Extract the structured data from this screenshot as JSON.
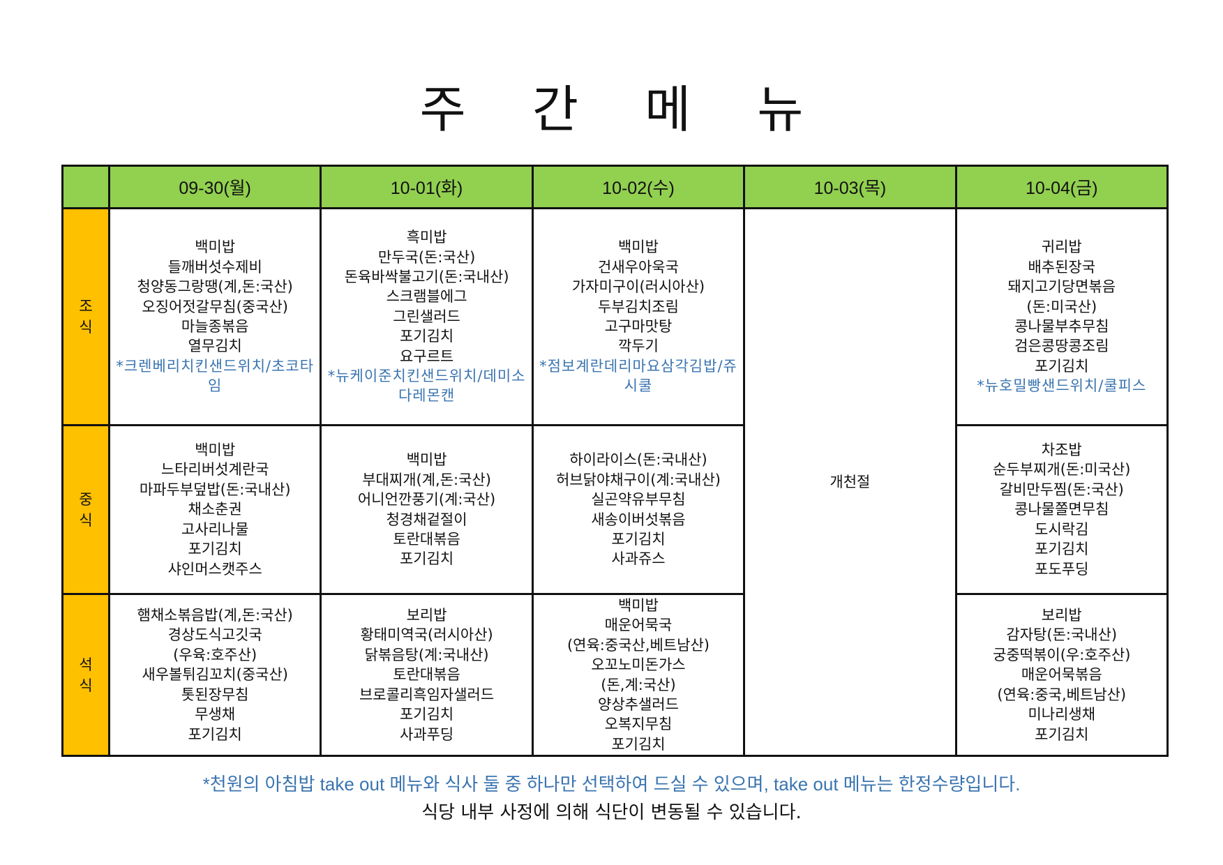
{
  "title": "주간메뉴",
  "colors": {
    "header_bg": "#92d050",
    "meal_label_bg": "#ffc000",
    "takeout_text": "#3a74b0"
  },
  "days": [
    "09-30(월)",
    "10-01(화)",
    "10-02(수)",
    "10-03(목)",
    "10-04(금)"
  ],
  "holiday": {
    "day": "10-03(목)",
    "label": "개천절"
  },
  "meals": [
    {
      "label": "조\n식",
      "cells": [
        {
          "items": [
            "백미밥",
            "들깨버섯수제비",
            "청양동그랑땡(계,돈:국산)",
            "오징어젓갈무침(중국산)",
            "마늘종볶음",
            "열무김치"
          ],
          "takeout": "*크렌베리치킨샌드위치/초코타임"
        },
        {
          "items": [
            "흑미밥",
            "만두국(돈:국산)",
            "돈육바싹불고기(돈:국내산)",
            "스크램블에그",
            "그린샐러드",
            "포기김치",
            "요구르트"
          ],
          "takeout": "*뉴케이준치킨샌드위치/데미소다레몬캔"
        },
        {
          "items": [
            "백미밥",
            "건새우아욱국",
            "가자미구이(러시아산)",
            "두부김치조림",
            "고구마맛탕",
            "깍두기"
          ],
          "takeout": "*점보계란데리마요삼각김밥/쥬시쿨"
        },
        null,
        {
          "items": [
            "귀리밥",
            "배추된장국",
            "돼지고기당면볶음",
            "(돈:미국산)",
            "콩나물부추무침",
            "검은콩땅콩조림",
            "포기김치"
          ],
          "takeout": "*뉴호밀빵샌드위치/쿨피스"
        }
      ]
    },
    {
      "label": "중\n식",
      "cells": [
        {
          "items": [
            "백미밥",
            "느타리버섯계란국",
            "마파두부덮밥(돈:국내산)",
            "채소춘권",
            "고사리나물",
            "포기김치",
            "샤인머스캣주스"
          ]
        },
        {
          "items": [
            "백미밥",
            "부대찌개(계,돈:국산)",
            "어니언깐풍기(계:국산)",
            "청경채겉절이",
            "토란대볶음",
            "포기김치"
          ]
        },
        {
          "items": [
            "하이라이스(돈:국내산)",
            "허브닭야채구이(계:국내산)",
            "실곤약유부무침",
            "새송이버섯볶음",
            "포기김치",
            "사과쥬스"
          ]
        },
        null,
        {
          "items": [
            "차조밥",
            "순두부찌개(돈:미국산)",
            "갈비만두찜(돈:국산)",
            "콩나물쫄면무침",
            "도시락김",
            "포기김치",
            "포도푸딩"
          ]
        }
      ]
    },
    {
      "label": "석\n식",
      "cells": [
        {
          "items": [
            "햄채소볶음밥(계,돈:국산)",
            "경상도식고깃국",
            "(우육:호주산)",
            "새우볼튀김꼬치(중국산)",
            "톳된장무침",
            "무생채",
            "포기김치"
          ]
        },
        {
          "items": [
            "보리밥",
            "황태미역국(러시아산)",
            "닭볶음탕(계:국내산)",
            "토란대볶음",
            "브로콜리흑임자샐러드",
            "포기김치",
            "사과푸딩"
          ]
        },
        {
          "items": [
            "백미밥",
            "매운어묵국",
            "(연육:중국산,베트남산)",
            "오꼬노미돈가스",
            "(돈,계:국산)",
            "양상추샐러드",
            "오복지무침",
            "포기김치"
          ]
        },
        null,
        {
          "items": [
            "보리밥",
            "감자탕(돈:국내산)",
            "궁중떡볶이(우:호주산)",
            "매운어묵볶음",
            "(연육:중국,베트남산)",
            "미나리생채",
            "포기김치"
          ]
        }
      ]
    }
  ],
  "notices": [
    "*천원의 아침밥 take out 메뉴와 식사 둘 중 하나만 선택하여 드실 수 있으며, take out 메뉴는 한정수량입니다.",
    "식당 내부 사정에 의해 식단이 변동될 수 있습니다."
  ]
}
